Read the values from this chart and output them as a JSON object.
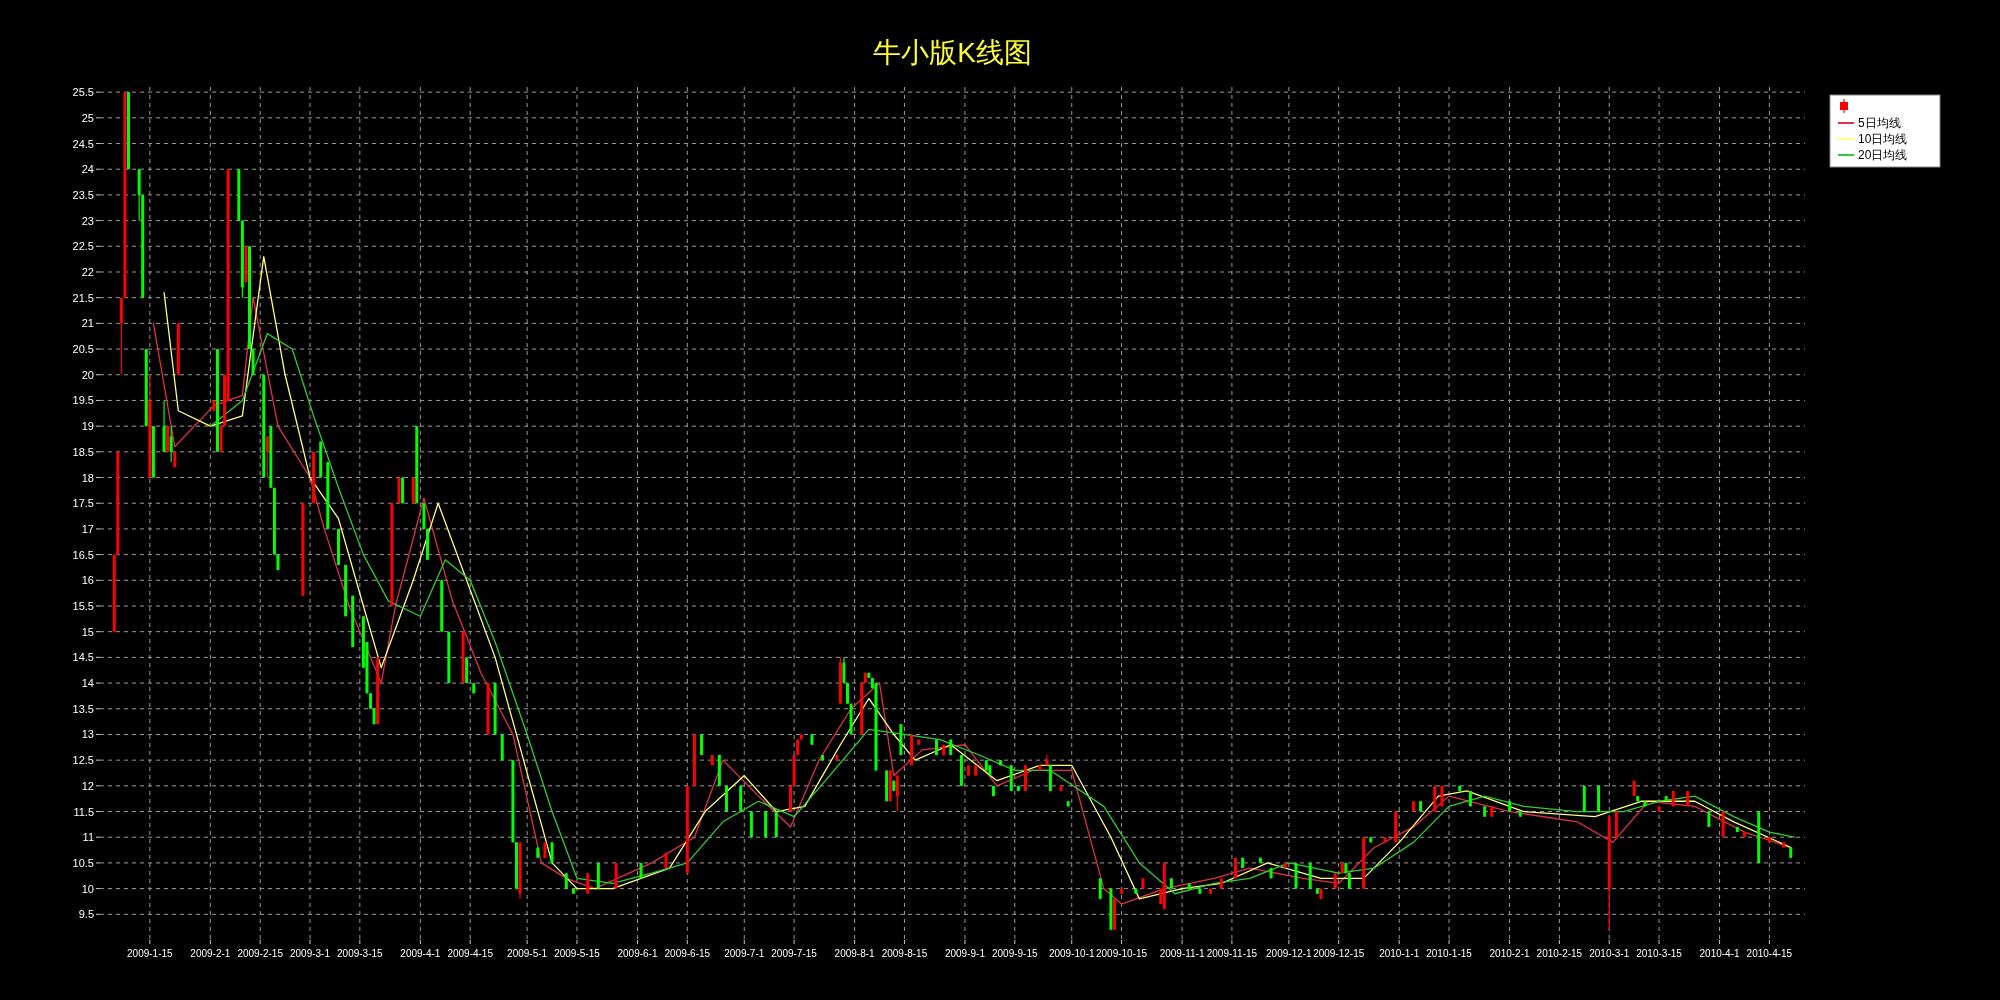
{
  "chart_data": {
    "type": "candlestick",
    "title": "牛小版K线图",
    "xlim": [
      "2009-01-01",
      "2010-04-25"
    ],
    "ylim": [
      9.0,
      25.6
    ],
    "yticks": [
      9.5,
      10,
      10.5,
      11,
      11.5,
      12,
      12.5,
      13,
      13.5,
      14,
      14.5,
      15,
      15.5,
      16,
      16.5,
      17,
      17.5,
      18,
      18.5,
      19,
      19.5,
      20,
      20.5,
      21,
      21.5,
      22,
      22.5,
      23,
      23.5,
      24,
      24.5,
      25,
      25.5
    ],
    "xticks": [
      {
        "value": "2009-01-15",
        "label": "2009-1-15"
      },
      {
        "value": "2009-02-01",
        "label": "2009-2-1"
      },
      {
        "value": "2009-02-15",
        "label": "2009-2-15"
      },
      {
        "value": "2009-03-01",
        "label": "2009-3-1"
      },
      {
        "value": "2009-03-15",
        "label": "2009-3-15"
      },
      {
        "value": "2009-04-01",
        "label": "2009-4-1"
      },
      {
        "value": "2009-04-15",
        "label": "2009-4-15"
      },
      {
        "value": "2009-05-01",
        "label": "2009-5-1"
      },
      {
        "value": "2009-05-15",
        "label": "2009-5-15"
      },
      {
        "value": "2009-06-01",
        "label": "2009-6-1"
      },
      {
        "value": "2009-06-15",
        "label": "2009-6-15"
      },
      {
        "value": "2009-07-01",
        "label": "2009-7-1"
      },
      {
        "value": "2009-07-15",
        "label": "2009-7-15"
      },
      {
        "value": "2009-08-01",
        "label": "2009-8-1"
      },
      {
        "value": "2009-08-15",
        "label": "2009-8-15"
      },
      {
        "value": "2009-09-01",
        "label": "2009-9-1"
      },
      {
        "value": "2009-09-15",
        "label": "2009-9-15"
      },
      {
        "value": "2009-10-01",
        "label": "2009-10-1"
      },
      {
        "value": "2009-10-15",
        "label": "2009-10-15"
      },
      {
        "value": "2009-11-01",
        "label": "2009-11-1"
      },
      {
        "value": "2009-11-15",
        "label": "2009-11-15"
      },
      {
        "value": "2009-12-01",
        "label": "2009-12-1"
      },
      {
        "value": "2009-12-15",
        "label": "2009-12-15"
      },
      {
        "value": "2010-01-01",
        "label": "2010-1-1"
      },
      {
        "value": "2010-01-15",
        "label": "2010-1-15"
      },
      {
        "value": "2010-02-01",
        "label": "2010-2-1"
      },
      {
        "value": "2010-02-15",
        "label": "2010-2-15"
      },
      {
        "value": "2010-03-01",
        "label": "2010-3-1"
      },
      {
        "value": "2010-03-15",
        "label": "2010-3-15"
      },
      {
        "value": "2010-04-01",
        "label": "2010-4-1"
      },
      {
        "value": "2010-04-15",
        "label": "2010-4-15"
      }
    ],
    "grid": true,
    "legend": "top right",
    "x": [
      "2009-01-05",
      "2009-01-06",
      "2009-01-07",
      "2009-01-08",
      "2009-01-09",
      "2009-01-12",
      "2009-01-13",
      "2009-01-14",
      "2009-01-15",
      "2009-01-16",
      "2009-01-19",
      "2009-01-20",
      "2009-01-21",
      "2009-01-22",
      "2009-01-23",
      "2009-02-02",
      "2009-02-03",
      "2009-02-04",
      "2009-02-05",
      "2009-02-06",
      "2009-02-09",
      "2009-02-10",
      "2009-02-11",
      "2009-02-12",
      "2009-02-13",
      "2009-02-16",
      "2009-02-17",
      "2009-02-18",
      "2009-02-19",
      "2009-02-20",
      "2009-02-27",
      "2009-03-02",
      "2009-03-04",
      "2009-03-06",
      "2009-03-09",
      "2009-03-11",
      "2009-03-13",
      "2009-03-16",
      "2009-03-17",
      "2009-03-18",
      "2009-03-19",
      "2009-03-20",
      "2009-03-24",
      "2009-03-26",
      "2009-03-27",
      "2009-03-30",
      "2009-03-31",
      "2009-04-02",
      "2009-04-03",
      "2009-04-07",
      "2009-04-09",
      "2009-04-13",
      "2009-04-14",
      "2009-04-16",
      "2009-04-20",
      "2009-04-22",
      "2009-04-24",
      "2009-04-27",
      "2009-04-28",
      "2009-04-29",
      "2009-05-04",
      "2009-05-06",
      "2009-05-08",
      "2009-05-12",
      "2009-05-14",
      "2009-05-18",
      "2009-05-21",
      "2009-05-26",
      "2009-06-02",
      "2009-06-09",
      "2009-06-15",
      "2009-06-17",
      "2009-06-19",
      "2009-06-22",
      "2009-06-24",
      "2009-06-26",
      "2009-06-30",
      "2009-07-03",
      "2009-07-07",
      "2009-07-10",
      "2009-07-14",
      "2009-07-15",
      "2009-07-16",
      "2009-07-17",
      "2009-07-20",
      "2009-07-23",
      "2009-07-27",
      "2009-07-28",
      "2009-07-29",
      "2009-07-30",
      "2009-07-31",
      "2009-08-03",
      "2009-08-04",
      "2009-08-05",
      "2009-08-06",
      "2009-08-07",
      "2009-08-10",
      "2009-08-11",
      "2009-08-12",
      "2009-08-13",
      "2009-08-14",
      "2009-08-17",
      "2009-08-19",
      "2009-08-24",
      "2009-08-26",
      "2009-08-28",
      "2009-08-31",
      "2009-09-02",
      "2009-09-04",
      "2009-09-07",
      "2009-09-08",
      "2009-09-09",
      "2009-09-11",
      "2009-09-14",
      "2009-09-16",
      "2009-09-18",
      "2009-09-22",
      "2009-09-24",
      "2009-09-25",
      "2009-09-28",
      "2009-09-30",
      "2009-10-09",
      "2009-10-12",
      "2009-10-13",
      "2009-10-15",
      "2009-10-19",
      "2009-10-21",
      "2009-10-26",
      "2009-10-27",
      "2009-10-29",
      "2009-11-03",
      "2009-11-06",
      "2009-11-09",
      "2009-11-12",
      "2009-11-16",
      "2009-11-18",
      "2009-11-23",
      "2009-11-26",
      "2009-11-30",
      "2009-12-03",
      "2009-12-07",
      "2009-12-09",
      "2009-12-10",
      "2009-12-14",
      "2009-12-16",
      "2009-12-17",
      "2009-12-18",
      "2009-12-22",
      "2009-12-24",
      "2009-12-28",
      "2009-12-31",
      "2010-01-05",
      "2010-01-07",
      "2010-01-11",
      "2010-01-13",
      "2010-01-18",
      "2010-01-21",
      "2010-01-25",
      "2010-01-27",
      "2010-02-01",
      "2010-02-04",
      "2010-02-22",
      "2010-02-26",
      "2010-03-01",
      "2010-03-03",
      "2010-03-08",
      "2010-03-09",
      "2010-03-11",
      "2010-03-15",
      "2010-03-17",
      "2010-03-19",
      "2010-03-23",
      "2010-03-29",
      "2010-04-02",
      "2010-04-06",
      "2010-04-08",
      "2010-04-12",
      "2010-04-15",
      "2010-04-19",
      "2010-04-21"
    ],
    "ohlc": [
      [
        15.0,
        16.5,
        15.0,
        16.5
      ],
      [
        16.5,
        18.5,
        16.5,
        18.5
      ],
      [
        21.0,
        21.5,
        20.0,
        21.5
      ],
      [
        21.5,
        25.5,
        21.5,
        25.5
      ],
      [
        25.5,
        25.5,
        24.0,
        24.0
      ],
      [
        24.0,
        24.0,
        23.0,
        23.5
      ],
      [
        23.5,
        23.5,
        21.5,
        21.5
      ],
      [
        20.5,
        20.5,
        19.0,
        19.0
      ],
      [
        18.0,
        20.0,
        18.0,
        19.5
      ],
      [
        19.0,
        19.0,
        18.0,
        18.0
      ],
      [
        19.0,
        19.5,
        18.5,
        18.5
      ],
      [
        18.5,
        19.0,
        18.5,
        19.0
      ],
      [
        18.8,
        19.0,
        18.3,
        18.5
      ],
      [
        18.2,
        18.5,
        18.2,
        18.5
      ],
      [
        20.0,
        21.0,
        20.0,
        21.0
      ],
      [
        19.3,
        19.5,
        19.3,
        19.5
      ],
      [
        20.5,
        20.5,
        18.5,
        18.5
      ],
      [
        18.5,
        19.0,
        18.5,
        19.0
      ],
      [
        19.0,
        20.0,
        19.0,
        20.0
      ],
      [
        19.5,
        24.0,
        19.5,
        24.0
      ],
      [
        24.0,
        24.0,
        23.0,
        23.0
      ],
      [
        23.0,
        23.0,
        21.5,
        21.7
      ],
      [
        21.8,
        22.5,
        21.8,
        22.5
      ],
      [
        22.5,
        22.5,
        20.5,
        20.5
      ],
      [
        20.5,
        20.5,
        20.0,
        20.0
      ],
      [
        20.0,
        20.0,
        18.0,
        18.0
      ],
      [
        18.5,
        18.8,
        18.0,
        18.8
      ],
      [
        19.0,
        19.0,
        17.8,
        17.8
      ],
      [
        17.8,
        17.8,
        16.5,
        16.5
      ],
      [
        16.5,
        16.5,
        16.2,
        16.2
      ],
      [
        15.7,
        17.5,
        15.7,
        17.5
      ],
      [
        17.5,
        18.5,
        17.5,
        18.5
      ],
      [
        18.7,
        18.7,
        18.0,
        18.0
      ],
      [
        18.3,
        18.3,
        17.0,
        17.0
      ],
      [
        17.0,
        17.0,
        16.3,
        16.3
      ],
      [
        16.3,
        16.3,
        15.3,
        15.3
      ],
      [
        15.7,
        15.7,
        14.7,
        14.7
      ],
      [
        15.3,
        15.3,
        14.3,
        14.3
      ],
      [
        14.8,
        14.8,
        13.8,
        13.8
      ],
      [
        13.8,
        13.8,
        13.5,
        13.5
      ],
      [
        13.5,
        13.5,
        13.2,
        13.2
      ],
      [
        13.2,
        14.5,
        13.2,
        14.5
      ],
      [
        15.5,
        17.5,
        15.5,
        17.5
      ],
      [
        17.5,
        18.0,
        17.5,
        18.0
      ],
      [
        18.0,
        18.0,
        17.5,
        17.5
      ],
      [
        17.5,
        18.0,
        17.5,
        18.0
      ],
      [
        19.0,
        19.0,
        17.5,
        17.5
      ],
      [
        17.5,
        17.5,
        17.0,
        17.0
      ],
      [
        17.0,
        17.0,
        16.4,
        16.4
      ],
      [
        16.0,
        16.0,
        15.0,
        15.0
      ],
      [
        15.0,
        15.0,
        14.0,
        14.0
      ],
      [
        14.0,
        15.0,
        14.0,
        15.0
      ],
      [
        14.5,
        14.5,
        14.0,
        14.0
      ],
      [
        14.0,
        14.0,
        13.8,
        13.8
      ],
      [
        13.0,
        14.0,
        13.0,
        14.0
      ],
      [
        14.0,
        14.0,
        13.0,
        13.0
      ],
      [
        13.0,
        13.0,
        12.5,
        12.5
      ],
      [
        12.5,
        12.5,
        10.9,
        10.9
      ],
      [
        10.9,
        10.9,
        10.0,
        10.0
      ],
      [
        9.9,
        10.9,
        9.8,
        10.9
      ],
      [
        10.8,
        10.8,
        10.6,
        10.6
      ],
      [
        10.6,
        10.9,
        10.6,
        10.9
      ],
      [
        10.9,
        10.9,
        10.5,
        10.5
      ],
      [
        10.3,
        10.3,
        10.0,
        10.0
      ],
      [
        10.0,
        10.0,
        9.9,
        9.9
      ],
      [
        9.9,
        10.3,
        9.9,
        10.3
      ],
      [
        10.5,
        10.5,
        10.0,
        10.0
      ],
      [
        10.0,
        10.5,
        10.0,
        10.5
      ],
      [
        10.5,
        10.5,
        10.2,
        10.2
      ],
      [
        10.4,
        10.7,
        10.4,
        10.7
      ],
      [
        10.3,
        12.0,
        10.3,
        12.0
      ],
      [
        12.0,
        13.0,
        12.0,
        13.0
      ],
      [
        13.0,
        13.0,
        12.6,
        12.6
      ],
      [
        12.4,
        12.6,
        12.4,
        12.6
      ],
      [
        12.6,
        12.6,
        12.0,
        12.0
      ],
      [
        12.0,
        12.0,
        11.5,
        11.5
      ],
      [
        12.0,
        12.0,
        11.5,
        11.5
      ],
      [
        11.5,
        11.5,
        11.0,
        11.0
      ],
      [
        11.5,
        11.5,
        11.0,
        11.0
      ],
      [
        11.5,
        11.5,
        11.0,
        11.0
      ],
      [
        11.5,
        12.0,
        11.5,
        12.0
      ],
      [
        12.0,
        12.6,
        12.0,
        12.6
      ],
      [
        12.6,
        12.9,
        12.6,
        12.9
      ],
      [
        12.9,
        13.0,
        12.9,
        13.0
      ],
      [
        13.0,
        13.0,
        12.8,
        12.8
      ],
      [
        12.6,
        12.6,
        12.5,
        12.5
      ],
      [
        12.5,
        12.6,
        12.5,
        12.6
      ],
      [
        13.6,
        14.5,
        13.6,
        14.4
      ],
      [
        14.4,
        14.5,
        14.0,
        14.0
      ],
      [
        14.0,
        14.0,
        13.6,
        13.6
      ],
      [
        13.6,
        13.6,
        13.0,
        13.0
      ],
      [
        13.0,
        14.0,
        13.0,
        14.0
      ],
      [
        14.0,
        14.2,
        14.0,
        14.2
      ],
      [
        14.2,
        14.2,
        14.1,
        14.1
      ],
      [
        14.1,
        14.1,
        13.9,
        13.9
      ],
      [
        14.0,
        14.0,
        12.3,
        12.3
      ],
      [
        12.3,
        12.3,
        11.7,
        11.7
      ],
      [
        11.7,
        12.3,
        11.7,
        12.3
      ],
      [
        12.1,
        12.1,
        11.9,
        11.9
      ],
      [
        11.8,
        12.2,
        11.5,
        12.2
      ],
      [
        13.2,
        13.2,
        12.6,
        12.6
      ],
      [
        12.4,
        13.0,
        12.4,
        13.0
      ],
      [
        12.8,
        12.9,
        12.8,
        12.9
      ],
      [
        12.9,
        12.9,
        12.6,
        12.6
      ],
      [
        12.6,
        12.8,
        12.6,
        12.8
      ],
      [
        12.9,
        12.9,
        12.6,
        12.6
      ],
      [
        12.6,
        12.6,
        12.0,
        12.0
      ],
      [
        12.2,
        12.4,
        12.2,
        12.4
      ],
      [
        12.2,
        12.4,
        12.2,
        12.4
      ],
      [
        12.5,
        12.5,
        12.3,
        12.3
      ],
      [
        12.4,
        12.4,
        12.2,
        12.2
      ],
      [
        12.0,
        12.0,
        11.8,
        11.8
      ],
      [
        12.5,
        12.5,
        12.4,
        12.4
      ],
      [
        12.4,
        12.4,
        11.9,
        11.9
      ],
      [
        12.0,
        12.0,
        11.9,
        11.9
      ],
      [
        11.9,
        12.4,
        11.9,
        12.4
      ],
      [
        12.3,
        12.4,
        12.3,
        12.4
      ],
      [
        12.4,
        12.6,
        12.4,
        12.5
      ],
      [
        12.4,
        12.4,
        11.9,
        11.9
      ],
      [
        11.9,
        12.0,
        11.9,
        12.0
      ],
      [
        11.7,
        11.7,
        11.6,
        11.6
      ],
      [
        10.2,
        10.2,
        9.8,
        9.8
      ],
      [
        10.0,
        10.0,
        9.2,
        9.2
      ],
      [
        9.2,
        9.8,
        9.2,
        9.8
      ],
      [
        9.9,
        10.0,
        9.9,
        10.0
      ],
      [
        10.0,
        10.0,
        9.9,
        9.9
      ],
      [
        10.0,
        10.2,
        10.0,
        10.2
      ],
      [
        9.7,
        10.0,
        9.7,
        10.0
      ],
      [
        9.6,
        10.5,
        9.6,
        10.5
      ],
      [
        10.2,
        10.2,
        10.0,
        10.0
      ],
      [
        10.1,
        10.1,
        10.0,
        10.0
      ],
      [
        10.0,
        10.0,
        9.9,
        9.9
      ],
      [
        9.9,
        10.0,
        9.9,
        10.0
      ],
      [
        10.0,
        10.2,
        10.0,
        10.2
      ],
      [
        10.2,
        10.6,
        10.2,
        10.6
      ],
      [
        10.6,
        10.6,
        10.4,
        10.4
      ],
      [
        10.6,
        10.6,
        10.5,
        10.5
      ],
      [
        10.4,
        10.4,
        10.2,
        10.2
      ],
      [
        10.4,
        10.5,
        10.4,
        10.5
      ],
      [
        10.5,
        10.5,
        10.0,
        10.0
      ],
      [
        10.5,
        10.5,
        10.0,
        10.0
      ],
      [
        10.0,
        10.0,
        9.9,
        9.9
      ],
      [
        9.8,
        10.0,
        9.8,
        10.0
      ],
      [
        10.0,
        10.3,
        10.0,
        10.3
      ],
      [
        10.3,
        10.5,
        10.3,
        10.5
      ],
      [
        10.5,
        10.5,
        10.3,
        10.3
      ],
      [
        10.3,
        10.3,
        10.0,
        10.0
      ],
      [
        10.0,
        11.0,
        10.0,
        11.0
      ],
      [
        11.0,
        11.0,
        10.9,
        10.9
      ],
      [
        10.9,
        11.0,
        10.9,
        11.0
      ],
      [
        10.9,
        11.5,
        10.9,
        11.5
      ],
      [
        11.5,
        11.7,
        11.5,
        11.7
      ],
      [
        11.7,
        11.7,
        11.5,
        11.5
      ],
      [
        11.5,
        12.0,
        11.5,
        12.0
      ],
      [
        11.6,
        12.0,
        11.6,
        12.0
      ],
      [
        12.0,
        12.0,
        11.9,
        11.9
      ],
      [
        11.9,
        11.9,
        11.6,
        11.6
      ],
      [
        11.6,
        11.6,
        11.4,
        11.4
      ],
      [
        11.4,
        11.6,
        11.4,
        11.6
      ],
      [
        11.7,
        11.7,
        11.5,
        11.5
      ],
      [
        11.5,
        11.5,
        11.4,
        11.4
      ],
      [
        12.0,
        12.0,
        11.5,
        11.5
      ],
      [
        12.0,
        12.0,
        11.5,
        11.5
      ],
      [
        10.0,
        11.4,
        9.2,
        11.4
      ],
      [
        11.0,
        11.5,
        11.0,
        11.5
      ],
      [
        11.8,
        12.1,
        11.8,
        12.1
      ],
      [
        11.8,
        11.8,
        11.7,
        11.7
      ],
      [
        11.7,
        11.7,
        11.6,
        11.6
      ],
      [
        11.5,
        11.6,
        11.5,
        11.6
      ],
      [
        11.8,
        11.8,
        11.7,
        11.7
      ],
      [
        11.6,
        11.9,
        11.6,
        11.9
      ],
      [
        11.6,
        11.9,
        11.6,
        11.9
      ],
      [
        11.5,
        11.5,
        11.2,
        11.2
      ],
      [
        11.0,
        11.5,
        11.0,
        11.5
      ],
      [
        11.2,
        11.2,
        11.1,
        11.1
      ],
      [
        11.0,
        11.1,
        11.0,
        11.1
      ],
      [
        11.5,
        11.5,
        10.5,
        10.5
      ],
      [
        10.9,
        11.0,
        10.9,
        11.0
      ],
      [
        10.8,
        10.9,
        10.8,
        10.9
      ],
      [
        10.8,
        10.8,
        10.6,
        10.6
      ]
    ],
    "colors": [
      "#ff0000",
      "#ff0000",
      "#ff0000",
      "#ff0000",
      "#00ff00",
      "#00ff00",
      "#00ff00",
      "#00ff00",
      "#ff0000",
      "#00ff00",
      "#00ff00",
      "#ff0000",
      "#00ff00",
      "#ff0000",
      "#ff0000",
      "#ff0000",
      "#00ff00",
      "#ff0000",
      "#ff0000",
      "#ff0000",
      "#00ff00",
      "#00ff00",
      "#ff0000",
      "#00ff00",
      "#00ff00",
      "#00ff00",
      "#ff0000",
      "#00ff00",
      "#00ff00",
      "#00ff00",
      "#ff0000",
      "#ff0000",
      "#00ff00",
      "#00ff00",
      "#00ff00",
      "#00ff00",
      "#00ff00",
      "#00ff00",
      "#00ff00",
      "#00ff00",
      "#00ff00",
      "#ff0000",
      "#ff0000",
      "#ff0000",
      "#00ff00",
      "#ff0000",
      "#00ff00",
      "#00ff00",
      "#00ff00",
      "#00ff00",
      "#00ff00",
      "#ff0000",
      "#00ff00",
      "#00ff00",
      "#ff0000",
      "#00ff00",
      "#00ff00",
      "#00ff00",
      "#00ff00",
      "#ff0000",
      "#00ff00",
      "#ff0000",
      "#00ff00",
      "#00ff00",
      "#00ff00",
      "#ff0000",
      "#00ff00",
      "#ff0000",
      "#00ff00",
      "#ff0000",
      "#ff0000",
      "#ff0000",
      "#00ff00",
      "#ff0000",
      "#00ff00",
      "#00ff00",
      "#00ff00",
      "#00ff00",
      "#00ff00",
      "#00ff00",
      "#ff0000",
      "#ff0000",
      "#ff0000",
      "#ff0000",
      "#00ff00",
      "#00ff00",
      "#ff0000",
      "#ff0000",
      "#00ff00",
      "#00ff00",
      "#00ff00",
      "#ff0000",
      "#ff0000",
      "#00ff00",
      "#00ff00",
      "#00ff00",
      "#00ff00",
      "#ff0000",
      "#00ff00",
      "#ff0000",
      "#00ff00",
      "#ff0000",
      "#ff0000",
      "#00ff00",
      "#ff0000",
      "#00ff00",
      "#00ff00",
      "#ff0000",
      "#ff0000",
      "#00ff00",
      "#00ff00",
      "#00ff00",
      "#00ff00",
      "#00ff00",
      "#00ff00",
      "#ff0000",
      "#ff0000",
      "#ff0000",
      "#00ff00",
      "#ff0000",
      "#00ff00",
      "#00ff00",
      "#00ff00",
      "#ff0000",
      "#ff0000",
      "#00ff00",
      "#ff0000",
      "#ff0000",
      "#ff0000",
      "#00ff00",
      "#00ff00",
      "#00ff00",
      "#ff0000",
      "#ff0000",
      "#ff0000",
      "#00ff00",
      "#00ff00",
      "#00ff00",
      "#ff0000",
      "#00ff00",
      "#00ff00",
      "#00ff00",
      "#ff0000",
      "#ff0000",
      "#ff0000",
      "#00ff00",
      "#00ff00",
      "#ff0000",
      "#00ff00",
      "#ff0000",
      "#ff0000",
      "#ff0000",
      "#00ff00",
      "#ff0000",
      "#ff0000",
      "#00ff00",
      "#00ff00",
      "#00ff00",
      "#ff0000",
      "#00ff00",
      "#00ff00",
      "#00ff00",
      "#00ff00",
      "#ff0000",
      "#ff0000",
      "#ff0000",
      "#00ff00",
      "#00ff00",
      "#ff0000",
      "#00ff00",
      "#ff0000",
      "#ff0000",
      "#00ff00",
      "#ff0000",
      "#00ff00",
      "#ff0000",
      "#00ff00",
      "#ff0000",
      "#ff0000",
      "#00ff00"
    ],
    "series": [
      {
        "name": "5日均线",
        "type": "line",
        "color": "#e0304a",
        "x": [
          "2009-01-16",
          "2009-01-22",
          "2009-02-02",
          "2009-02-10",
          "2009-02-13",
          "2009-02-20",
          "2009-03-01",
          "2009-03-05",
          "2009-03-12",
          "2009-03-21",
          "2009-03-25",
          "2009-04-02",
          "2009-04-10",
          "2009-04-18",
          "2009-04-27",
          "2009-05-05",
          "2009-05-12",
          "2009-05-20",
          "2009-06-05",
          "2009-06-17",
          "2009-06-25",
          "2009-07-05",
          "2009-07-14",
          "2009-07-22",
          "2009-07-31",
          "2009-08-08",
          "2009-08-12",
          "2009-08-20",
          "2009-09-01",
          "2009-09-10",
          "2009-09-20",
          "2009-10-01",
          "2009-10-10",
          "2009-10-15",
          "2009-10-27",
          "2009-11-10",
          "2009-11-20",
          "2009-12-05",
          "2009-12-15",
          "2009-12-25",
          "2010-01-05",
          "2010-01-15",
          "2010-02-01",
          "2010-02-20",
          "2010-03-02",
          "2010-03-12",
          "2010-03-25",
          "2010-04-08",
          "2010-04-21"
        ],
        "values": [
          21.0,
          18.6,
          19.4,
          19.6,
          21.5,
          19.0,
          18.0,
          17.0,
          15.5,
          14.0,
          15.5,
          17.6,
          15.6,
          14.2,
          13.0,
          10.5,
          10.2,
          10.0,
          10.5,
          11.0,
          12.5,
          11.8,
          11.2,
          12.5,
          13.5,
          14.0,
          12.2,
          12.7,
          12.8,
          12.0,
          12.3,
          12.3,
          10.0,
          9.7,
          10.0,
          10.2,
          10.4,
          10.2,
          10.1,
          10.8,
          11.2,
          11.8,
          11.5,
          11.3,
          10.9,
          11.7,
          11.6,
          11.1,
          10.8
        ]
      },
      {
        "name": "10日均线",
        "type": "line",
        "color": "#ffff80",
        "x": [
          "2009-01-19",
          "2009-01-23",
          "2009-02-01",
          "2009-02-10",
          "2009-02-16",
          "2009-02-22",
          "2009-03-01",
          "2009-03-09",
          "2009-03-16",
          "2009-03-21",
          "2009-03-30",
          "2009-04-06",
          "2009-04-14",
          "2009-04-22",
          "2009-04-30",
          "2009-05-08",
          "2009-05-15",
          "2009-05-25",
          "2009-06-10",
          "2009-06-20",
          "2009-07-01",
          "2009-07-10",
          "2009-07-18",
          "2009-07-28",
          "2009-08-05",
          "2009-08-12",
          "2009-08-18",
          "2009-08-28",
          "2009-09-10",
          "2009-09-22",
          "2009-10-01",
          "2009-10-12",
          "2009-10-20",
          "2009-11-01",
          "2009-11-12",
          "2009-11-25",
          "2009-12-10",
          "2009-12-22",
          "2010-01-01",
          "2010-01-12",
          "2010-01-20",
          "2010-02-05",
          "2010-02-25",
          "2010-03-10",
          "2010-03-25",
          "2010-04-05",
          "2010-04-21"
        ],
        "values": [
          21.6,
          19.3,
          19.0,
          19.2,
          22.3,
          20.0,
          18.0,
          17.2,
          15.5,
          14.3,
          16.0,
          17.5,
          16.0,
          14.5,
          12.5,
          10.5,
          10.0,
          10.0,
          10.4,
          11.5,
          12.2,
          11.5,
          11.6,
          12.8,
          13.7,
          13.0,
          12.5,
          12.8,
          12.1,
          12.4,
          12.4,
          11.0,
          9.8,
          10.0,
          10.1,
          10.5,
          10.2,
          10.2,
          10.9,
          11.8,
          11.9,
          11.5,
          11.4,
          11.7,
          11.7,
          11.3,
          10.8
        ]
      },
      {
        "name": "20日均线",
        "type": "line",
        "color": "#33cc33",
        "x": [
          "2009-02-01",
          "2009-02-10",
          "2009-02-17",
          "2009-02-24",
          "2009-03-02",
          "2009-03-09",
          "2009-03-16",
          "2009-03-23",
          "2009-04-01",
          "2009-04-08",
          "2009-04-15",
          "2009-04-22",
          "2009-05-01",
          "2009-05-08",
          "2009-05-15",
          "2009-05-25",
          "2009-06-05",
          "2009-06-15",
          "2009-06-25",
          "2009-07-05",
          "2009-07-15",
          "2009-07-25",
          "2009-08-05",
          "2009-08-15",
          "2009-08-25",
          "2009-09-05",
          "2009-09-15",
          "2009-09-25",
          "2009-10-10",
          "2009-10-20",
          "2009-10-30",
          "2009-11-10",
          "2009-11-20",
          "2009-12-01",
          "2009-12-15",
          "2009-12-25",
          "2010-01-05",
          "2010-01-15",
          "2010-01-25",
          "2010-02-05",
          "2010-02-20",
          "2010-03-05",
          "2010-03-15",
          "2010-03-25",
          "2010-04-05",
          "2010-04-15",
          "2010-04-22"
        ],
        "values": [
          19.0,
          19.5,
          20.8,
          20.5,
          19.2,
          17.8,
          16.5,
          15.6,
          15.3,
          16.4,
          16.0,
          14.8,
          13.0,
          11.5,
          10.2,
          10.1,
          10.3,
          10.5,
          11.3,
          11.7,
          11.4,
          12.2,
          13.1,
          13.0,
          12.9,
          12.6,
          12.3,
          12.3,
          11.6,
          10.5,
          9.9,
          10.1,
          10.2,
          10.5,
          10.3,
          10.4,
          10.9,
          11.6,
          11.8,
          11.6,
          11.5,
          11.5,
          11.7,
          11.8,
          11.4,
          11.1,
          11.0
        ]
      }
    ]
  }
}
